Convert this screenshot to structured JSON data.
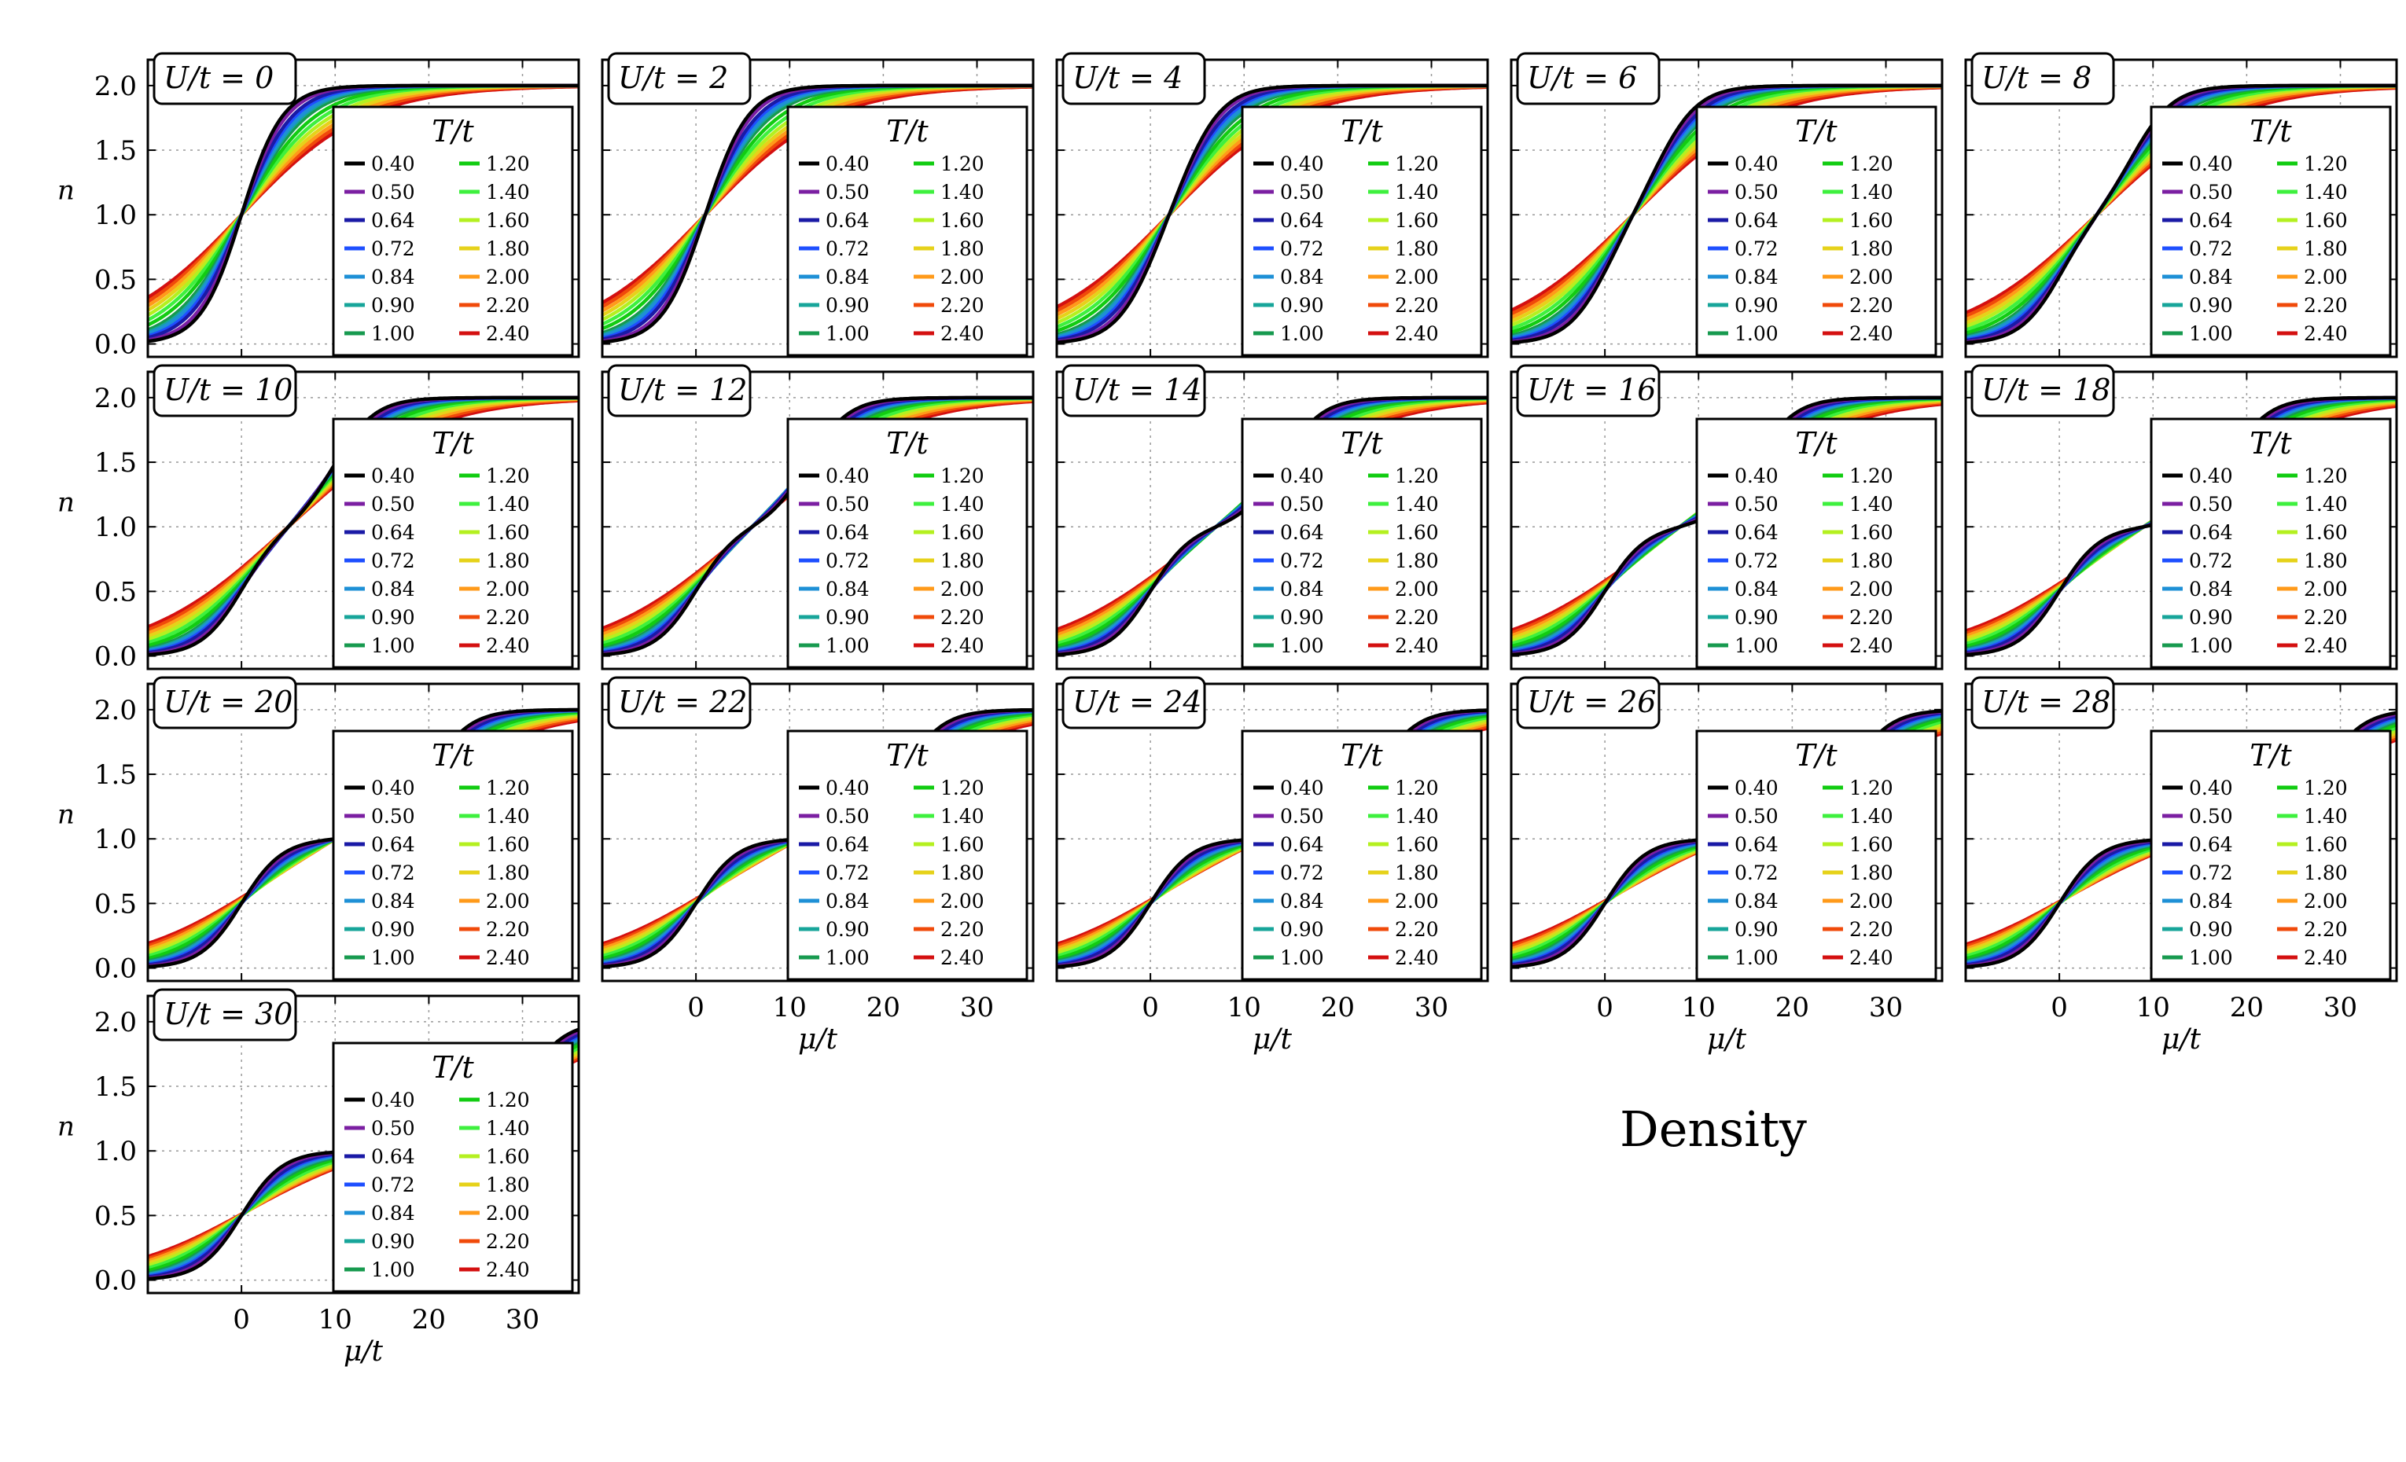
{
  "figure_title": "Density",
  "colors": {
    "0.40": "#000000",
    "0.50": "#7b1fa2",
    "0.64": "#1a1aa6",
    "0.72": "#1e4fff",
    "0.84": "#1e90d6",
    "0.90": "#17a59a",
    "1.00": "#179a4f",
    "1.20": "#12cc12",
    "1.40": "#3ef03e",
    "1.60": "#b4f020",
    "1.80": "#e6d21a",
    "2.00": "#ff9a1a",
    "2.20": "#f04a0a",
    "2.40": "#d41010"
  },
  "chart_data": {
    "type": "line",
    "title": "Density",
    "xlabel": "μ/t",
    "ylabel": "n",
    "xlim": [
      -10,
      36
    ],
    "ylim": [
      -0.1,
      2.2
    ],
    "xticks": [
      0,
      10,
      20,
      30
    ],
    "yticks": [
      "0.0",
      "0.5",
      "1.0",
      "1.5",
      "2.0"
    ],
    "grid": true,
    "legend_title": "T/t",
    "legend_position": "right",
    "temperatures": [
      "0.40",
      "0.50",
      "0.64",
      "0.72",
      "0.84",
      "0.90",
      "1.00",
      "1.20",
      "1.40",
      "1.60",
      "1.80",
      "2.00",
      "2.20",
      "2.40"
    ],
    "panels": [
      {
        "label": "U/t = 0",
        "U": 0
      },
      {
        "label": "U/t = 2",
        "U": 2
      },
      {
        "label": "U/t = 4",
        "U": 4
      },
      {
        "label": "U/t = 6",
        "U": 6
      },
      {
        "label": "U/t = 8",
        "U": 8
      },
      {
        "label": "U/t = 10",
        "U": 10
      },
      {
        "label": "U/t = 12",
        "U": 12
      },
      {
        "label": "U/t = 14",
        "U": 14
      },
      {
        "label": "U/t = 16",
        "U": 16
      },
      {
        "label": "U/t = 18",
        "U": 18
      },
      {
        "label": "U/t = 20",
        "U": 20
      },
      {
        "label": "U/t = 22",
        "U": 22
      },
      {
        "label": "U/t = 24",
        "U": 24
      },
      {
        "label": "U/t = 26",
        "U": 26
      },
      {
        "label": "U/t = 28",
        "U": 28
      },
      {
        "label": "U/t = 30",
        "U": 30
      }
    ]
  }
}
